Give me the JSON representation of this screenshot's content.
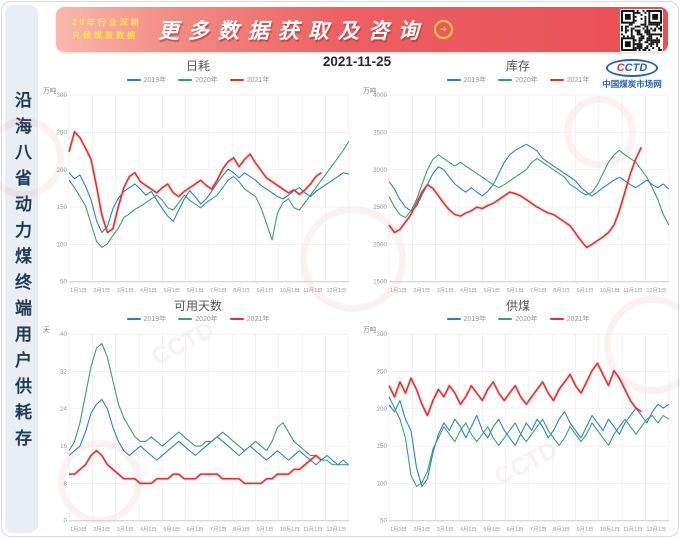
{
  "banner": {
    "slogan_line1": "20年行业深耕",
    "slogan_line2": "只做煤炭数据",
    "title": "更多数据获取及咨询",
    "arrow_icon": "➜"
  },
  "sidebar": {
    "text": "沿海八省动力煤终端用户供耗存"
  },
  "date": "2021-11-25",
  "logo": {
    "abbr_first": "C",
    "abbr_rest": "CTD",
    "name": "中国煤炭市场网"
  },
  "watermark_text": "CCTD",
  "colors": {
    "blue": "#2f7ec2",
    "green": "#3d9e6d",
    "red": "#dd3232",
    "grid": "#ebebeb",
    "axis": "#cccccc",
    "tick": "#999999"
  },
  "x_labels": [
    "1月1日",
    "2月1日",
    "3月1日",
    "4月1日",
    "5月1日",
    "6月1日",
    "7月1日",
    "8月1日",
    "9月1日",
    "10月1日",
    "11月1日",
    "12月1日"
  ],
  "legend_labels": [
    "2019年",
    "2020年",
    "2021年"
  ],
  "chart_data": [
    {
      "type": "line",
      "title": "日耗",
      "unit": "万吨",
      "ylim": [
        50,
        300
      ],
      "yticks": [
        300,
        250,
        200,
        150,
        100,
        50
      ],
      "legend_position": "top",
      "grid": true,
      "series": [
        {
          "name": "2019年",
          "color": "blue",
          "values": [
            196,
            188,
            193,
            178,
            160,
            132,
            116,
            124,
            148,
            162,
            171,
            176,
            181,
            174,
            166,
            171,
            159,
            148,
            138,
            131,
            146,
            161,
            172,
            164,
            154,
            161,
            171,
            182,
            192,
            201,
            196,
            189,
            196,
            191,
            186,
            179,
            174,
            169,
            164,
            161,
            166,
            172,
            176,
            169,
            164,
            171,
            176,
            181,
            186,
            191,
            196,
            194
          ]
        },
        {
          "name": "2020年",
          "color": "green",
          "values": [
            186,
            176,
            164,
            152,
            128,
            104,
            96,
            101,
            112,
            122,
            136,
            141,
            147,
            151,
            156,
            161,
            166,
            159,
            149,
            146,
            156,
            166,
            159,
            154,
            149,
            156,
            161,
            166,
            176,
            186,
            191,
            184,
            174,
            169,
            164,
            149,
            128,
            106,
            142,
            156,
            161,
            149,
            146,
            156,
            166,
            176,
            186,
            196,
            206,
            216,
            226,
            238
          ]
        },
        {
          "name": "2021年",
          "color": "red",
          "values": [
            224,
            251,
            243,
            229,
            214,
            178,
            139,
            116,
            121,
            151,
            176,
            191,
            196,
            184,
            179,
            174,
            169,
            176,
            181,
            169,
            164,
            171,
            176,
            181,
            186,
            179,
            174,
            186,
            201,
            211,
            216,
            204,
            214,
            221,
            209,
            199,
            189,
            184,
            179,
            174,
            169,
            173,
            167,
            173,
            181,
            191,
            196
          ]
        }
      ]
    },
    {
      "type": "line",
      "title": "库存",
      "unit": "万吨",
      "ylim": [
        1500,
        4000
      ],
      "yticks": [
        4000,
        3500,
        3000,
        2500,
        2000,
        1500
      ],
      "legend_position": "top",
      "grid": true,
      "series": [
        {
          "name": "2019年",
          "color": "blue",
          "values": [
            2840,
            2740,
            2600,
            2500,
            2450,
            2510,
            2660,
            2800,
            2950,
            3040,
            3000,
            2900,
            2810,
            2750,
            2700,
            2760,
            2700,
            2650,
            2710,
            2800,
            2950,
            3100,
            3200,
            3260,
            3300,
            3340,
            3300,
            3250,
            3150,
            3100,
            3050,
            3000,
            2950,
            2900,
            2850,
            2760,
            2700,
            2650,
            2700,
            2760,
            2810,
            2860,
            2900,
            2850,
            2800,
            2760,
            2810,
            2860,
            2800,
            2760,
            2810,
            2740
          ]
        },
        {
          "name": "2020年",
          "color": "green",
          "values": [
            2640,
            2500,
            2400,
            2360,
            2450,
            2600,
            2800,
            3000,
            3140,
            3200,
            3150,
            3100,
            3050,
            3100,
            3050,
            3000,
            2950,
            2900,
            2850,
            2800,
            2760,
            2800,
            2850,
            2900,
            2950,
            3000,
            3100,
            3150,
            3100,
            3050,
            3000,
            2950,
            2900,
            2800,
            2760,
            2700,
            2660,
            2700,
            2800,
            2950,
            3100,
            3200,
            3260,
            3200,
            3150,
            3100,
            3000,
            2900,
            2760,
            2600,
            2400,
            2260
          ]
        },
        {
          "name": "2021年",
          "color": "red",
          "values": [
            2260,
            2160,
            2200,
            2300,
            2400,
            2550,
            2700,
            2800,
            2750,
            2650,
            2550,
            2460,
            2400,
            2380,
            2420,
            2450,
            2500,
            2480,
            2520,
            2550,
            2600,
            2650,
            2700,
            2680,
            2650,
            2600,
            2550,
            2500,
            2460,
            2420,
            2400,
            2350,
            2300,
            2250,
            2150,
            2050,
            1960,
            2000,
            2050,
            2100,
            2160,
            2260,
            2450,
            2700,
            2950,
            3150,
            3300
          ]
        }
      ]
    },
    {
      "type": "line",
      "title": "可用天数",
      "unit": "天",
      "ylim": [
        0,
        40
      ],
      "yticks": [
        40,
        32,
        24,
        16,
        8,
        0
      ],
      "legend_position": "top",
      "grid": true,
      "series": [
        {
          "name": "2019年",
          "color": "blue",
          "values": [
            14,
            15,
            16,
            19,
            23,
            25,
            26,
            24,
            20,
            17,
            15,
            14,
            15,
            16,
            15,
            14,
            13,
            14,
            15,
            16,
            17,
            16,
            15,
            14,
            15,
            16,
            17,
            18,
            17,
            16,
            15,
            14,
            15,
            16,
            15,
            14,
            13,
            14,
            15,
            14,
            13,
            14,
            15,
            14,
            13,
            12,
            13,
            14,
            13,
            12,
            12,
            12
          ]
        },
        {
          "name": "2020年",
          "color": "green",
          "values": [
            15,
            17,
            21,
            27,
            33,
            37,
            38,
            35,
            30,
            25,
            22,
            20,
            18,
            17,
            17,
            18,
            17,
            16,
            17,
            18,
            19,
            18,
            17,
            16,
            16,
            17,
            17,
            18,
            19,
            18,
            17,
            16,
            15,
            16,
            17,
            16,
            15,
            17,
            20,
            21,
            19,
            17,
            16,
            15,
            14,
            14,
            13,
            13,
            12,
            12,
            13,
            12
          ]
        },
        {
          "name": "2021年",
          "color": "red",
          "values": [
            10,
            10,
            11,
            12,
            14,
            15,
            14,
            12,
            11,
            10,
            9,
            9,
            9,
            8,
            8,
            8,
            9,
            9,
            9,
            10,
            10,
            9,
            9,
            9,
            10,
            10,
            10,
            10,
            9,
            9,
            9,
            9,
            8,
            8,
            8,
            8,
            9,
            9,
            10,
            10,
            10,
            11,
            11,
            12,
            13,
            14,
            13
          ]
        }
      ]
    },
    {
      "type": "line",
      "title": "供煤",
      "unit": "万吨",
      "ylim": [
        50,
        300
      ],
      "yticks": [
        300,
        250,
        200,
        150,
        100,
        50
      ],
      "legend_position": "top",
      "grid": true,
      "series": [
        {
          "name": "2019年",
          "color": "blue",
          "values": [
            205,
            196,
            211,
            186,
            171,
            121,
            96,
            106,
            141,
            166,
            181,
            171,
            186,
            176,
            161,
            176,
            191,
            171,
            161,
            176,
            186,
            171,
            161,
            151,
            166,
            181,
            171,
            186,
            176,
            161,
            171,
            186,
            196,
            181,
            171,
            161,
            176,
            191,
            181,
            171,
            186,
            176,
            166,
            181,
            191,
            201,
            191,
            181,
            196,
            206,
            201,
            206
          ]
        },
        {
          "name": "2020年",
          "color": "green",
          "values": [
            216,
            201,
            186,
            161,
            111,
            96,
            101,
            116,
            146,
            161,
            176,
            166,
            156,
            171,
            181,
            166,
            156,
            166,
            176,
            161,
            151,
            161,
            171,
            181,
            166,
            156,
            166,
            176,
            186,
            171,
            161,
            151,
            161,
            176,
            166,
            156,
            166,
            181,
            171,
            161,
            151,
            166,
            176,
            186,
            176,
            166,
            176,
            186,
            191,
            181,
            191,
            186
          ]
        },
        {
          "name": "2021年",
          "color": "red",
          "values": [
            231,
            216,
            236,
            221,
            241,
            226,
            206,
            191,
            211,
            226,
            216,
            231,
            221,
            206,
            216,
            231,
            221,
            211,
            226,
            236,
            221,
            211,
            221,
            231,
            216,
            206,
            216,
            226,
            236,
            221,
            211,
            226,
            236,
            246,
            231,
            221,
            236,
            251,
            261,
            246,
            231,
            251,
            241,
            226,
            211,
            201,
            196
          ]
        }
      ]
    }
  ]
}
